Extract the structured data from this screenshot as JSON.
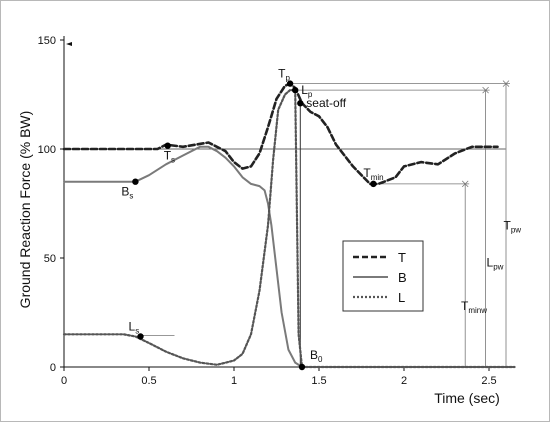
{
  "chart_data": {
    "type": "line",
    "title": "",
    "xlabel": "Time (sec)",
    "ylabel": "Ground Reaction Force (% BW)",
    "xlim": [
      0,
      2.6
    ],
    "ylim": [
      0,
      150
    ],
    "xticks": [
      0,
      0.5,
      1,
      1.5,
      2,
      2.5
    ],
    "xtick_labels": [
      "0",
      "0.5",
      "1",
      "1.5",
      "2",
      "2.5"
    ],
    "yticks": [
      0,
      50,
      100,
      150
    ],
    "ytick_labels": [
      "0",
      "50",
      "100",
      "150"
    ],
    "grid": false,
    "legend_position": "center-right",
    "series": [
      {
        "name": "T",
        "style": "dashed",
        "color": "#222222",
        "x": [
          0,
          0.2,
          0.4,
          0.55,
          0.6,
          0.7,
          0.85,
          0.95,
          1.0,
          1.05,
          1.1,
          1.15,
          1.2,
          1.25,
          1.3,
          1.33,
          1.36,
          1.4,
          1.45,
          1.5,
          1.55,
          1.6,
          1.7,
          1.8,
          1.85,
          1.95,
          2.0,
          2.1,
          2.2,
          2.3,
          2.4,
          2.5,
          2.55
        ],
        "y": [
          100,
          100,
          100,
          100,
          102,
          101,
          103,
          99,
          94,
          91,
          92,
          98,
          110,
          123,
          129,
          130,
          128,
          121,
          117,
          115,
          110,
          102,
          92,
          84,
          84,
          87,
          92,
          94,
          93,
          98,
          101,
          101,
          101
        ]
      },
      {
        "name": "B",
        "style": "solid",
        "color": "#7a7a7a",
        "x": [
          0,
          0.2,
          0.35,
          0.42,
          0.5,
          0.6,
          0.7,
          0.8,
          0.85,
          0.9,
          0.95,
          1.0,
          1.05,
          1.1,
          1.15,
          1.18,
          1.2,
          1.22,
          1.25,
          1.28,
          1.32,
          1.36,
          1.4,
          1.5,
          2.0,
          2.5,
          2.65
        ],
        "y": [
          85,
          85,
          85,
          85,
          88,
          93,
          97,
          101,
          101,
          99,
          96,
          92,
          87,
          84,
          83,
          81,
          75,
          65,
          45,
          25,
          8,
          2,
          0,
          0,
          0,
          0,
          0
        ]
      },
      {
        "name": "L",
        "style": "dotted",
        "color": "#555555",
        "x": [
          0,
          0.2,
          0.35,
          0.42,
          0.5,
          0.6,
          0.7,
          0.8,
          0.9,
          1.0,
          1.05,
          1.1,
          1.15,
          1.2,
          1.23,
          1.26,
          1.3,
          1.33,
          1.36,
          1.38,
          1.4,
          1.5,
          2.0,
          2.5,
          2.65
        ],
        "y": [
          15,
          15,
          15,
          14,
          11,
          7,
          4,
          2,
          1,
          3,
          6,
          15,
          35,
          65,
          95,
          118,
          125,
          127,
          127,
          15,
          0,
          0,
          0,
          0,
          0
        ]
      }
    ],
    "horizontal_lines": [
      {
        "y": 100,
        "x_from": 0,
        "x_to": 2.6
      }
    ],
    "annotations": [
      {
        "label": "T",
        "sub": "s",
        "x": 0.61,
        "y": 101.5,
        "marker": true,
        "label_position": "below"
      },
      {
        "label": "B",
        "sub": "s",
        "x": 0.42,
        "y": 85,
        "marker": true,
        "label_position": "below-left"
      },
      {
        "label": "L",
        "sub": "s",
        "x": 0.45,
        "y": 14,
        "marker": true,
        "label_position": "above-left"
      },
      {
        "label": "T",
        "sub": "p",
        "x": 1.33,
        "y": 130,
        "marker": true,
        "label_position": "above-left"
      },
      {
        "label": "L",
        "sub": "p",
        "x": 1.36,
        "y": 127,
        "marker": true,
        "label_position": "right"
      },
      {
        "label": "seat-off",
        "sub": "",
        "x": 1.39,
        "y": 121,
        "marker": true,
        "label_position": "right"
      },
      {
        "label": "T",
        "sub": "min",
        "x": 1.82,
        "y": 84,
        "marker": true,
        "label_position": "above"
      },
      {
        "label": "B",
        "sub": "0",
        "x": 1.4,
        "y": 0,
        "marker": true,
        "label_position": "above-right"
      },
      {
        "label": "T",
        "sub": "pw",
        "x": 2.55,
        "y": 65,
        "marker": false,
        "label_position": "right"
      },
      {
        "label": "L",
        "sub": "pw",
        "x": 2.45,
        "y": 48,
        "marker": false,
        "label_position": "right"
      },
      {
        "label": "T",
        "sub": "minw",
        "x": 2.3,
        "y": 28,
        "marker": false,
        "label_position": "right"
      }
    ],
    "width_markers": [
      {
        "name": "Tpw",
        "x": 2.6,
        "y_top": 130,
        "x_from": 1.33
      },
      {
        "name": "Lpw",
        "x": 2.48,
        "y_top": 127,
        "x_from": 1.36
      },
      {
        "name": "Tminw",
        "x": 2.36,
        "y_top": 84,
        "x_from": 1.82
      }
    ],
    "vertical_markers": [
      {
        "name": "seat-off",
        "x": 1.39,
        "y_top": 121,
        "y_bottom": 0
      }
    ]
  }
}
